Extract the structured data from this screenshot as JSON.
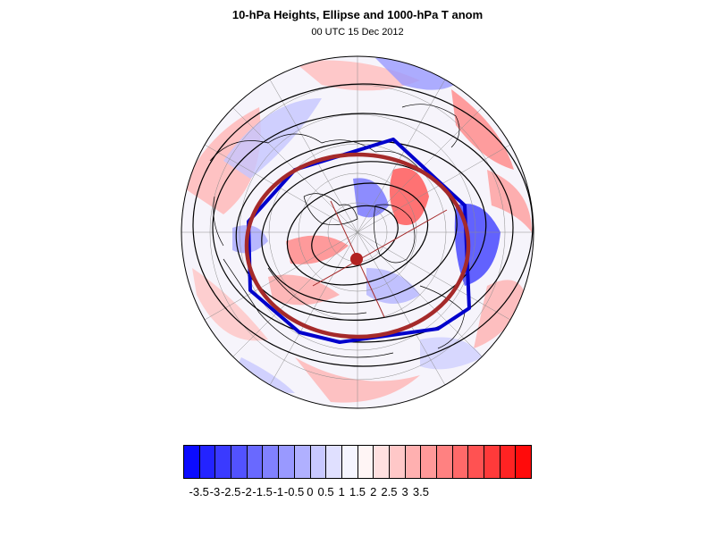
{
  "header": {
    "title": "10-hPa Heights, Ellipse and 1000-hPa T anom",
    "subtitle": "00 UTC 15 Dec 2012"
  },
  "colors": {
    "ellipse": "#a52a2a",
    "polygon": "#0000cc",
    "contour": "#000000"
  },
  "colorbar": {
    "colors": [
      "#0b0bff",
      "#2323ff",
      "#3a3aff",
      "#5252ff",
      "#6969ff",
      "#8181ff",
      "#9999ff",
      "#b0b0ff",
      "#c8c8ff",
      "#e0e0ff",
      "#f5f5ff",
      "#fff5f5",
      "#ffe0e0",
      "#ffc8c8",
      "#ffb0b0",
      "#ff9999",
      "#ff8181",
      "#ff6969",
      "#ff5252",
      "#ff3a3a",
      "#ff2323",
      "#ff0b0b"
    ],
    "labels": [
      "-3.5",
      "-3",
      "-2.5",
      "-2",
      "-1.5",
      "-1",
      "-0.5",
      "0",
      "0.5",
      "1",
      "1.5",
      "2",
      "2.5",
      "3",
      "3.5"
    ]
  }
}
